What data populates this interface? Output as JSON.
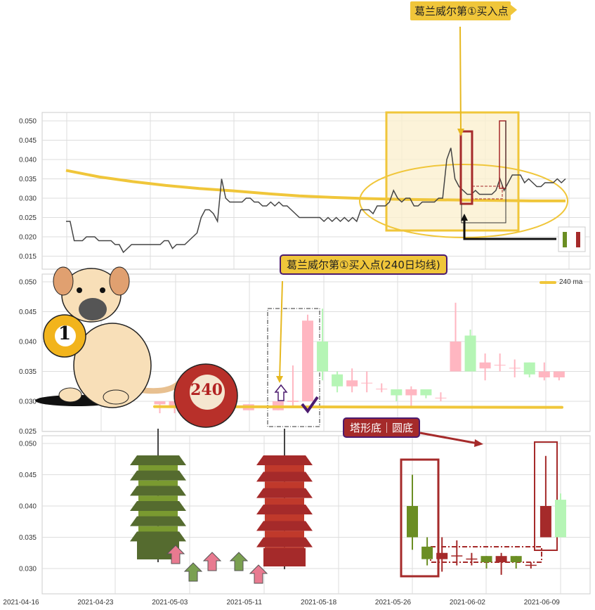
{
  "annotations": {
    "top_callout": "葛兰威尔第①买入点",
    "mid_callout": "葛兰威尔第①买入点(240日均线)",
    "bottom_callout": "塔形底｜圆底",
    "ball_1": "1",
    "ball_240": "240",
    "legend_ma": "240 ma"
  },
  "colors": {
    "ma": "#f0c63a",
    "up_light": "#ffb6c1",
    "down_light": "#b5f5b5",
    "up_dark": "#a52a2a",
    "down_dark": "#6b8e23",
    "callout_yellow": "#f0c63a",
    "callout_red": "#a52a2a",
    "callout_border": "#4b1a6e"
  },
  "x_axis": {
    "ticks": [
      "2021-04-16",
      "2021-04-23",
      "2021-05-03",
      "2021-05-11",
      "2021-05-18",
      "2021-05-26",
      "2021-06-02",
      "2021-06-09"
    ]
  },
  "chart_data": [
    {
      "type": "line",
      "panel": "top",
      "yticks": [
        "0.050",
        "0.045",
        "0.040",
        "0.035",
        "0.030",
        "0.025",
        "0.020",
        "0.015"
      ],
      "ylim": [
        0.013,
        0.052
      ],
      "series": [
        {
          "values": [
            0.024,
            0.024,
            0.019,
            0.019,
            0.019,
            0.02,
            0.02,
            0.02,
            0.019,
            0.019,
            0.019,
            0.019,
            0.018,
            0.018,
            0.016,
            0.017,
            0.018,
            0.018,
            0.018,
            0.018,
            0.018,
            0.018,
            0.018,
            0.018,
            0.019,
            0.019,
            0.017,
            0.018,
            0.018,
            0.018,
            0.019,
            0.02,
            0.021,
            0.025,
            0.027,
            0.027,
            0.026,
            0.024,
            0.035,
            0.03,
            0.029,
            0.029,
            0.029,
            0.029,
            0.03,
            0.03,
            0.029,
            0.029,
            0.028,
            0.028,
            0.029,
            0.028,
            0.029,
            0.028,
            0.028,
            0.027,
            0.026,
            0.025,
            0.025,
            0.025,
            0.025,
            0.025,
            0.025,
            0.024,
            0.025,
            0.024,
            0.025,
            0.024,
            0.025,
            0.024,
            0.025,
            0.024,
            0.027,
            0.027,
            0.027,
            0.026,
            0.028,
            0.028,
            0.028,
            0.029,
            0.032,
            0.03,
            0.029,
            0.03,
            0.03,
            0.028,
            0.028,
            0.029,
            0.029,
            0.029,
            0.029,
            0.03,
            0.03,
            0.04,
            0.043,
            0.035,
            0.033,
            0.032,
            0.031,
            0.031,
            0.032,
            0.031,
            0.031,
            0.031,
            0.031,
            0.032,
            0.035,
            0.032,
            0.034,
            0.036,
            0.036,
            0.036,
            0.034,
            0.035,
            0.034,
            0.033,
            0.033,
            0.034,
            0.034,
            0.034,
            0.035,
            0.034,
            0.035
          ]
        },
        {
          "name": "240 ma",
          "values": [
            0.0372,
            0.0355,
            0.0343,
            0.0333,
            0.0325,
            0.0319,
            0.0312,
            0.0306,
            0.0302,
            0.0299,
            0.0297,
            0.0296,
            0.0295,
            0.0294,
            0.0293,
            0.0293
          ]
        }
      ]
    },
    {
      "type": "candlestick",
      "panel": "middle",
      "yticks": [
        "0.050",
        "0.045",
        "0.040",
        "0.035",
        "0.030",
        "0.025"
      ],
      "ylim": [
        0.025,
        0.051
      ],
      "legend": "top-right",
      "candles": [
        {
          "i": 10,
          "o": 0.0295,
          "h": 0.03,
          "l": 0.028,
          "c": 0.03
        },
        {
          "i": 11,
          "o": 0.029,
          "h": 0.03,
          "l": 0.028,
          "c": 0.03
        },
        {
          "i": 16,
          "o": 0.0285,
          "h": 0.0295,
          "l": 0.0285,
          "c": 0.0295
        },
        {
          "i": 18,
          "o": 0.0285,
          "h": 0.03,
          "l": 0.0285,
          "c": 0.03
        },
        {
          "i": 19,
          "o": 0.0299,
          "h": 0.036,
          "l": 0.029,
          "c": 0.0301
        },
        {
          "i": 20,
          "o": 0.03,
          "h": 0.0445,
          "l": 0.03,
          "c": 0.0435
        },
        {
          "i": 21,
          "o": 0.04,
          "h": 0.0455,
          "l": 0.0335,
          "c": 0.035
        },
        {
          "i": 22,
          "o": 0.0345,
          "h": 0.035,
          "l": 0.0315,
          "c": 0.0325
        },
        {
          "i": 23,
          "o": 0.0325,
          "h": 0.0355,
          "l": 0.0315,
          "c": 0.0335
        },
        {
          "i": 24,
          "o": 0.033,
          "h": 0.035,
          "l": 0.0315,
          "c": 0.0331
        },
        {
          "i": 25,
          "o": 0.032,
          "h": 0.033,
          "l": 0.0315,
          "c": 0.0321
        },
        {
          "i": 26,
          "o": 0.032,
          "h": 0.032,
          "l": 0.03,
          "c": 0.031
        },
        {
          "i": 27,
          "o": 0.031,
          "h": 0.0325,
          "l": 0.029,
          "c": 0.032
        },
        {
          "i": 28,
          "o": 0.032,
          "h": 0.032,
          "l": 0.0305,
          "c": 0.031
        },
        {
          "i": 29,
          "o": 0.0305,
          "h": 0.0315,
          "l": 0.03,
          "c": 0.0306
        },
        {
          "i": 30,
          "o": 0.035,
          "h": 0.0465,
          "l": 0.035,
          "c": 0.04
        },
        {
          "i": 31,
          "o": 0.041,
          "h": 0.042,
          "l": 0.035,
          "c": 0.035
        },
        {
          "i": 32,
          "o": 0.0355,
          "h": 0.038,
          "l": 0.0335,
          "c": 0.0365
        },
        {
          "i": 33,
          "o": 0.036,
          "h": 0.038,
          "l": 0.035,
          "c": 0.0361
        },
        {
          "i": 34,
          "o": 0.0355,
          "h": 0.037,
          "l": 0.034,
          "c": 0.0356
        },
        {
          "i": 35,
          "o": 0.0365,
          "h": 0.0365,
          "l": 0.034,
          "c": 0.0345
        },
        {
          "i": 36,
          "o": 0.034,
          "h": 0.0365,
          "l": 0.0335,
          "c": 0.035
        },
        {
          "i": 37,
          "o": 0.034,
          "h": 0.035,
          "l": 0.0335,
          "c": 0.035
        }
      ],
      "ma": {
        "name": "240 ma",
        "value": 0.0291
      }
    },
    {
      "type": "candlestick",
      "panel": "bottom",
      "yticks": [
        "0.050",
        "0.045",
        "0.040",
        "0.035",
        "0.030"
      ],
      "ylim": [
        0.026,
        0.051
      ],
      "candles": [
        {
          "o": 0.04,
          "h": 0.045,
          "l": 0.033,
          "c": 0.035,
          "style": "down_dark"
        },
        {
          "o": 0.0335,
          "h": 0.035,
          "l": 0.0305,
          "c": 0.0315,
          "style": "down_dark"
        },
        {
          "o": 0.0315,
          "h": 0.035,
          "l": 0.0295,
          "c": 0.0325,
          "style": "up_dark"
        },
        {
          "o": 0.032,
          "h": 0.0345,
          "l": 0.0305,
          "c": 0.0321,
          "style": "up_dark"
        },
        {
          "o": 0.0315,
          "h": 0.0325,
          "l": 0.0305,
          "c": 0.0316,
          "style": "up_dark"
        },
        {
          "o": 0.032,
          "h": 0.032,
          "l": 0.03,
          "c": 0.031,
          "style": "down_dark"
        },
        {
          "o": 0.031,
          "h": 0.0325,
          "l": 0.029,
          "c": 0.032,
          "style": "up_dark"
        },
        {
          "o": 0.032,
          "h": 0.032,
          "l": 0.03,
          "c": 0.031,
          "style": "down_dark"
        },
        {
          "o": 0.0305,
          "h": 0.031,
          "l": 0.03,
          "c": 0.0306,
          "style": "up_dark"
        },
        {
          "o": 0.035,
          "h": 0.048,
          "l": 0.035,
          "c": 0.04,
          "style": "up_dark"
        },
        {
          "o": 0.041,
          "h": 0.042,
          "l": 0.035,
          "c": 0.035,
          "style": "down_light"
        }
      ]
    }
  ]
}
